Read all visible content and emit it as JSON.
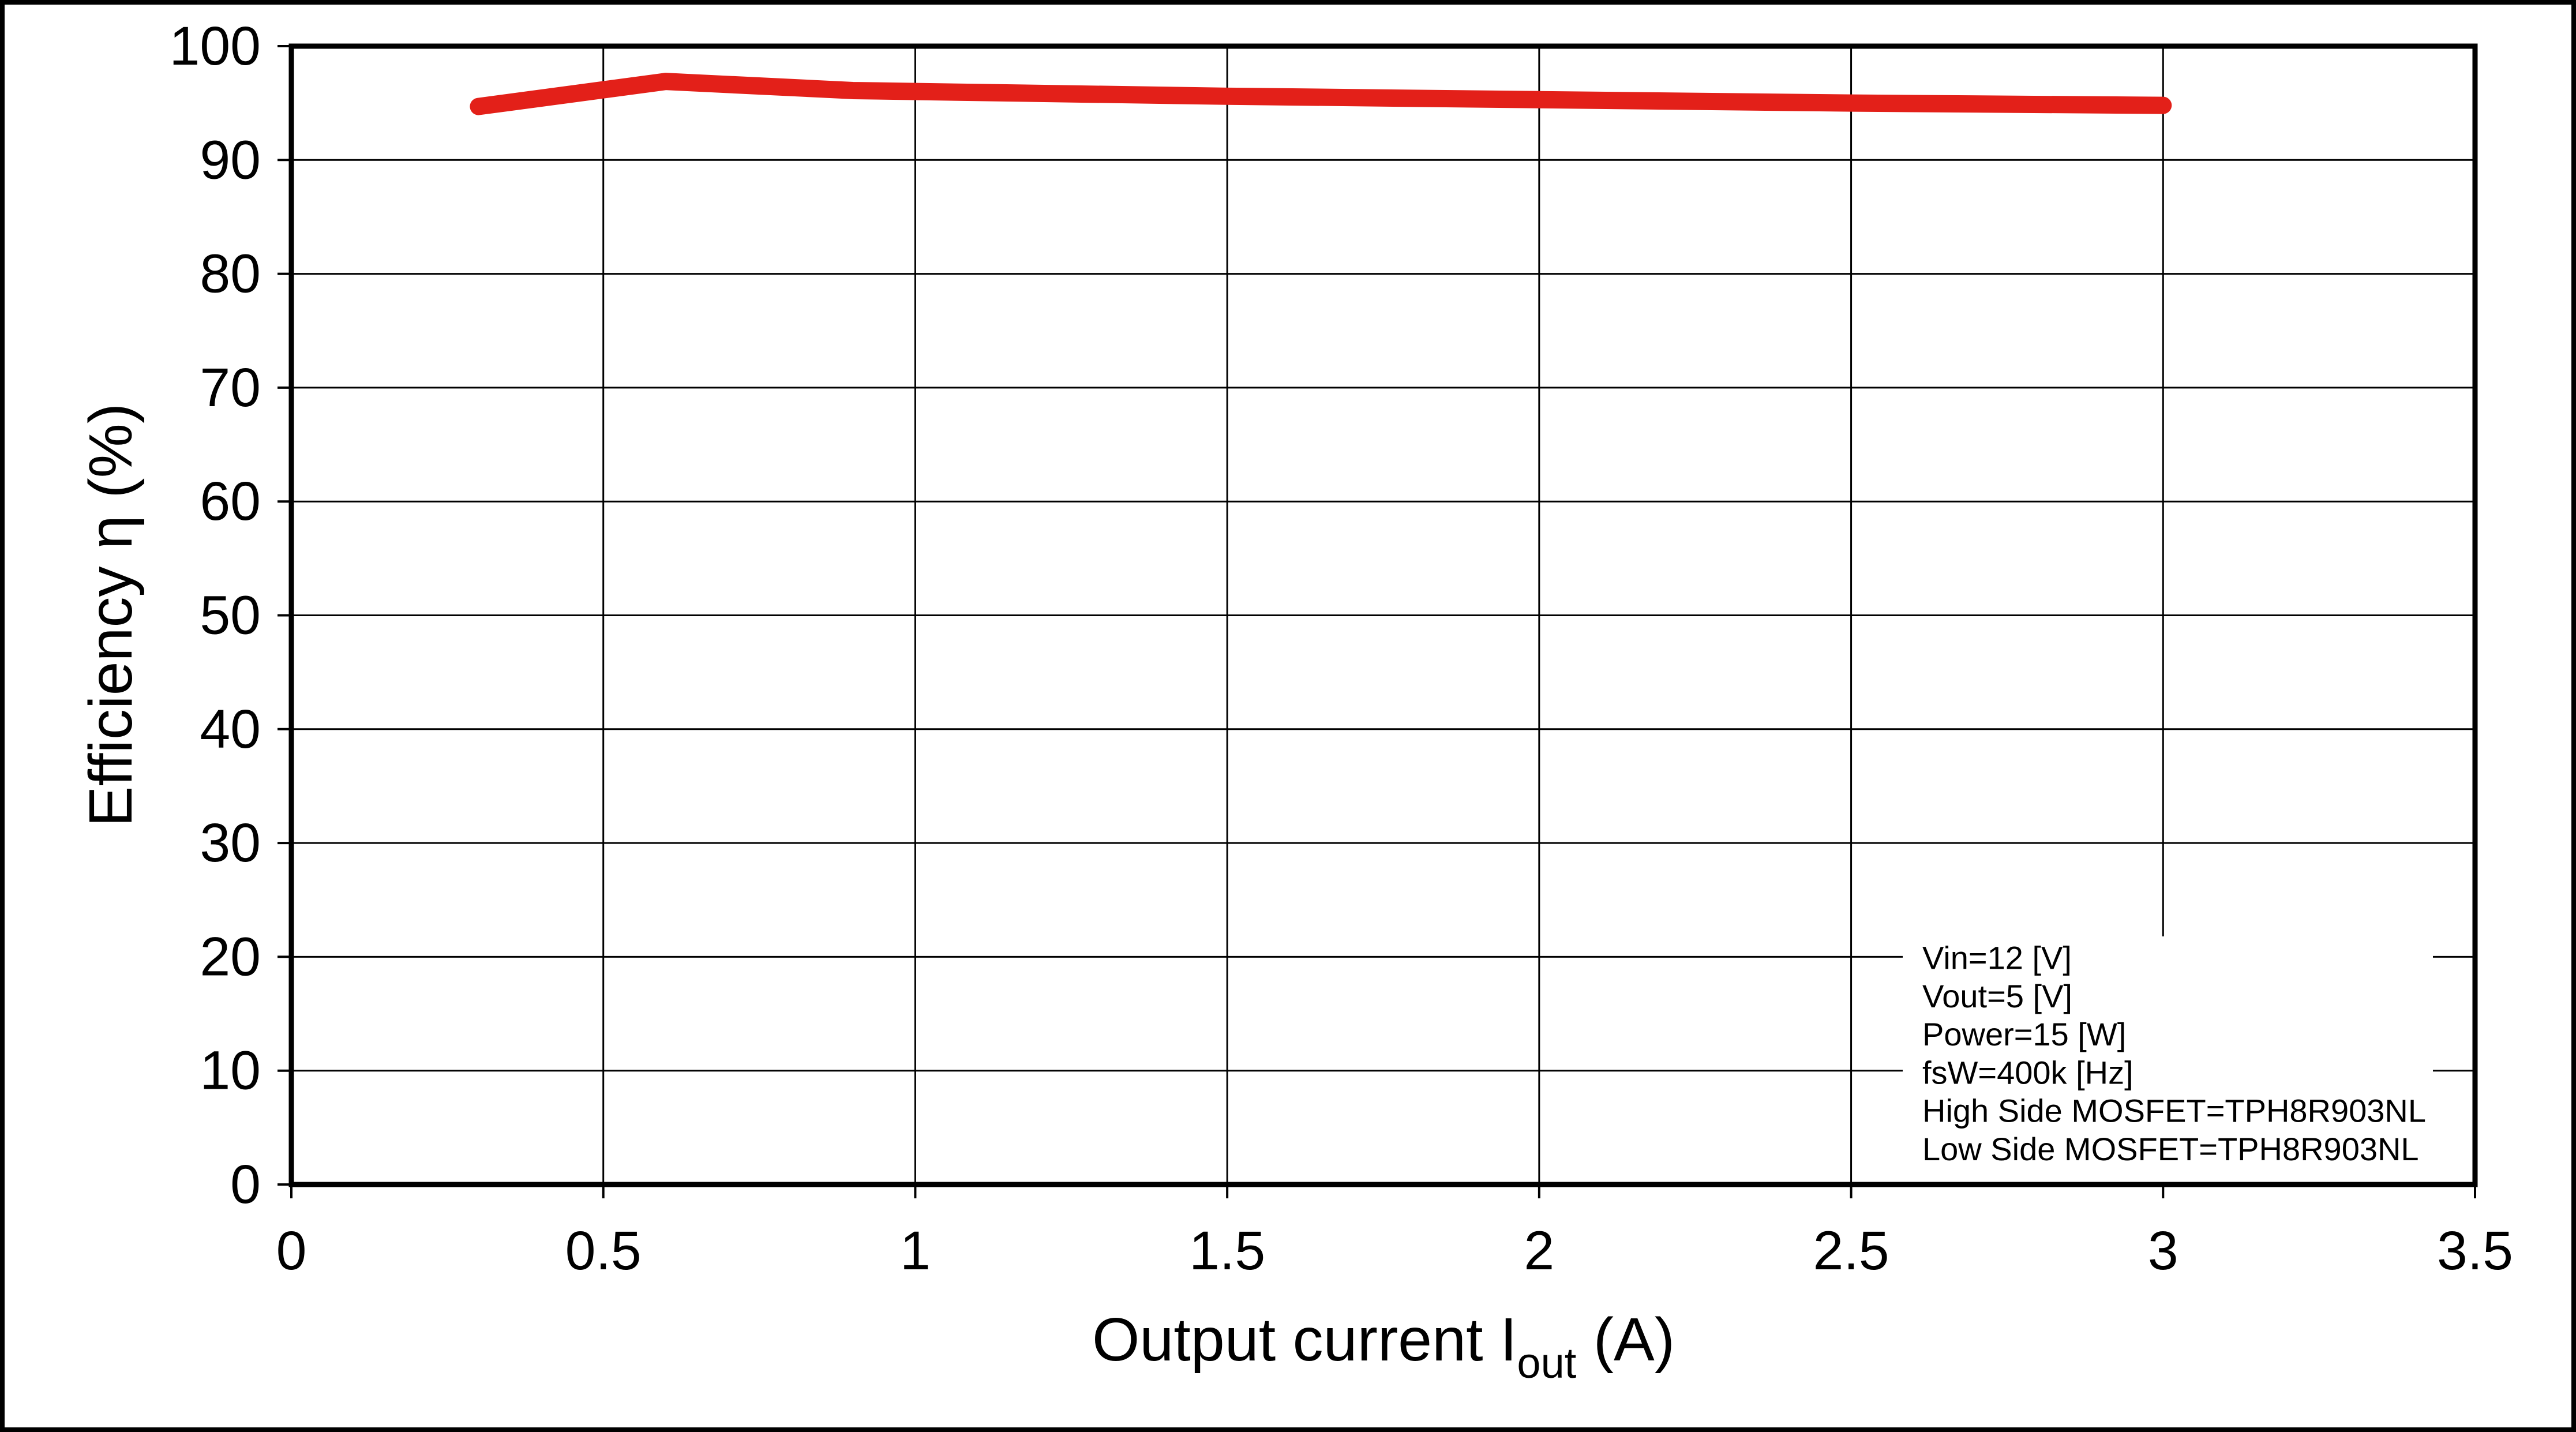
{
  "chart_data": {
    "type": "line",
    "title": "",
    "xlabel": "Output current  Iout (A)",
    "xlabel_parts": {
      "prefix": "Output current  I",
      "subscript": "out",
      "suffix": " (A)"
    },
    "ylabel": "Efficiency  η (%)",
    "xlim": [
      0,
      3.5
    ],
    "ylim": [
      0,
      100
    ],
    "xtick_step": 0.5,
    "ytick_step": 10,
    "xticks": [
      "0",
      "0.5",
      "1",
      "1.5",
      "2",
      "2.5",
      "3",
      "3.5"
    ],
    "yticks": [
      "0",
      "10",
      "20",
      "30",
      "40",
      "50",
      "60",
      "70",
      "80",
      "90",
      "100"
    ],
    "grid": true,
    "legend": "none",
    "x": [
      0.3,
      0.6,
      0.9,
      1.5,
      2.0,
      2.5,
      3.0
    ],
    "series": [
      {
        "name": "efficiency",
        "color": "#e32019",
        "values": [
          94.7,
          96.9,
          96.1,
          95.6,
          95.3,
          95.0,
          94.8
        ]
      }
    ],
    "annotation": {
      "lines": [
        "Vin=12 [V]",
        "Vout=5 [V]",
        "Power=15 [W]",
        "fsW=400k [Hz]",
        "High Side MOSFET=TPH8R903NL",
        "Low Side MOSFET=TPH8R903NL"
      ]
    }
  },
  "colors": {
    "background": "#ffffff",
    "axis": "#000000",
    "grid": "#000000",
    "frame": "#000000",
    "series": "#e32019"
  }
}
